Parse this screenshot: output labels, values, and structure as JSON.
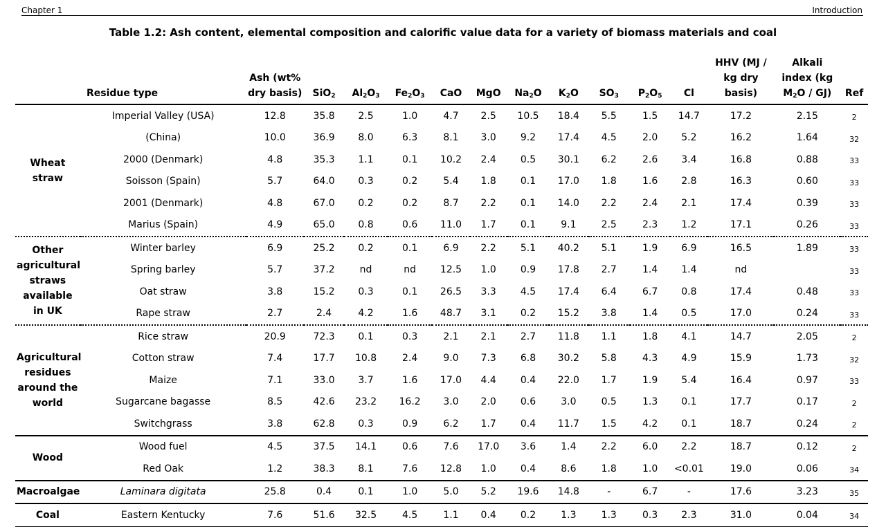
{
  "header": {
    "left": "Chapter 1",
    "right": "Introduction"
  },
  "title": "Table 1.2: Ash content, elemental composition and calorific value data for a variety of biomass materials and coal",
  "columns": {
    "residue": "Residue type",
    "ash": "Ash (wt% dry basis)",
    "sio2_a": "SiO",
    "sio2_b": "2",
    "al2o3_a": "Al",
    "al2o3_b": "2",
    "al2o3_c": "O",
    "al2o3_d": "3",
    "fe2o3_a": "Fe",
    "fe2o3_b": "2",
    "fe2o3_c": "O",
    "fe2o3_d": "3",
    "cao": "CaO",
    "mgo": "MgO",
    "na2o_a": "Na",
    "na2o_b": "2",
    "na2o_c": "O",
    "k2o_a": "K",
    "k2o_b": "2",
    "k2o_c": "O",
    "so3_a": "SO",
    "so3_b": "3",
    "p2o5_a": "P",
    "p2o5_b": "2",
    "p2o5_c": "O",
    "p2o5_d": "5",
    "cl": "Cl",
    "hhv": "HHV (MJ / kg dry basis)",
    "alkali_a": "Alkali index (kg M",
    "alkali_b": "2",
    "alkali_c": "O / GJ)",
    "ref": "Ref"
  },
  "groups": {
    "wheat": "Wheat straw",
    "other": "Other agricultural straws available in UK",
    "agri": "Agricultural residues around the world",
    "wood": "Wood",
    "macro": "Macroalgae",
    "coal": "Coal"
  },
  "rows": [
    {
      "name": "Imperial Valley (USA)",
      "ash": "12.8",
      "sio2": "35.8",
      "al2o3": "2.5",
      "fe2o3": "1.0",
      "cao": "4.7",
      "mgo": "2.5",
      "na2o": "10.5",
      "k2o": "18.4",
      "so3": "5.5",
      "p2o5": "1.5",
      "cl": "14.7",
      "hhv": "17.2",
      "alkali": "2.15",
      "ref": "2"
    },
    {
      "name": "(China)",
      "ash": "10.0",
      "sio2": "36.9",
      "al2o3": "8.0",
      "fe2o3": "6.3",
      "cao": "8.1",
      "mgo": "3.0",
      "na2o": "9.2",
      "k2o": "17.4",
      "so3": "4.5",
      "p2o5": "2.0",
      "cl": "5.2",
      "hhv": "16.2",
      "alkali": "1.64",
      "ref": "32"
    },
    {
      "name": "2000 (Denmark)",
      "ash": "4.8",
      "sio2": "35.3",
      "al2o3": "1.1",
      "fe2o3": "0.1",
      "cao": "10.2",
      "mgo": "2.4",
      "na2o": "0.5",
      "k2o": "30.1",
      "so3": "6.2",
      "p2o5": "2.6",
      "cl": "3.4",
      "hhv": "16.8",
      "alkali": "0.88",
      "ref": "33"
    },
    {
      "name": "Soisson (Spain)",
      "ash": "5.7",
      "sio2": "64.0",
      "al2o3": "0.3",
      "fe2o3": "0.2",
      "cao": "5.4",
      "mgo": "1.8",
      "na2o": "0.1",
      "k2o": "17.0",
      "so3": "1.8",
      "p2o5": "1.6",
      "cl": "2.8",
      "hhv": "16.3",
      "alkali": "0.60",
      "ref": "33"
    },
    {
      "name": "2001 (Denmark)",
      "ash": "4.8",
      "sio2": "67.0",
      "al2o3": "0.2",
      "fe2o3": "0.2",
      "cao": "8.7",
      "mgo": "2.2",
      "na2o": "0.1",
      "k2o": "14.0",
      "so3": "2.2",
      "p2o5": "2.4",
      "cl": "2.1",
      "hhv": "17.4",
      "alkali": "0.39",
      "ref": "33"
    },
    {
      "name": "Marius (Spain)",
      "ash": "4.9",
      "sio2": "65.0",
      "al2o3": "0.8",
      "fe2o3": "0.6",
      "cao": "11.0",
      "mgo": "1.7",
      "na2o": "0.1",
      "k2o": "9.1",
      "so3": "2.5",
      "p2o5": "2.3",
      "cl": "1.2",
      "hhv": "17.1",
      "alkali": "0.26",
      "ref": "33"
    },
    {
      "name": "Winter barley",
      "ash": "6.9",
      "sio2": "25.2",
      "al2o3": "0.2",
      "fe2o3": "0.1",
      "cao": "6.9",
      "mgo": "2.2",
      "na2o": "5.1",
      "k2o": "40.2",
      "so3": "5.1",
      "p2o5": "1.9",
      "cl": "6.9",
      "hhv": "16.5",
      "alkali": "1.89",
      "ref": "33"
    },
    {
      "name": "Spring barley",
      "ash": "5.7",
      "sio2": "37.2",
      "al2o3": "nd",
      "fe2o3": "nd",
      "cao": "12.5",
      "mgo": "1.0",
      "na2o": "0.9",
      "k2o": "17.8",
      "so3": "2.7",
      "p2o5": "1.4",
      "cl": "1.4",
      "hhv": "nd",
      "alkali": "",
      "ref": "33"
    },
    {
      "name": "Oat straw",
      "ash": "3.8",
      "sio2": "15.2",
      "al2o3": "0.3",
      "fe2o3": "0.1",
      "cao": "26.5",
      "mgo": "3.3",
      "na2o": "4.5",
      "k2o": "17.4",
      "so3": "6.4",
      "p2o5": "6.7",
      "cl": "0.8",
      "hhv": "17.4",
      "alkali": "0.48",
      "ref": "33"
    },
    {
      "name": "Rape straw",
      "ash": "2.7",
      "sio2": "2.4",
      "al2o3": "4.2",
      "fe2o3": "1.6",
      "cao": "48.7",
      "mgo": "3.1",
      "na2o": "0.2",
      "k2o": "15.2",
      "so3": "3.8",
      "p2o5": "1.4",
      "cl": "0.5",
      "hhv": "17.0",
      "alkali": "0.24",
      "ref": "33"
    },
    {
      "name": "Rice straw",
      "ash": "20.9",
      "sio2": "72.3",
      "al2o3": "0.1",
      "fe2o3": "0.3",
      "cao": "2.1",
      "mgo": "2.1",
      "na2o": "2.7",
      "k2o": "11.8",
      "so3": "1.1",
      "p2o5": "1.8",
      "cl": "4.1",
      "hhv": "14.7",
      "alkali": "2.05",
      "ref": "2"
    },
    {
      "name": "Cotton straw",
      "ash": "7.4",
      "sio2": "17.7",
      "al2o3": "10.8",
      "fe2o3": "2.4",
      "cao": "9.0",
      "mgo": "7.3",
      "na2o": "6.8",
      "k2o": "30.2",
      "so3": "5.8",
      "p2o5": "4.3",
      "cl": "4.9",
      "hhv": "15.9",
      "alkali": "1.73",
      "ref": "32"
    },
    {
      "name": "Maize",
      "ash": "7.1",
      "sio2": "33.0",
      "al2o3": "3.7",
      "fe2o3": "1.6",
      "cao": "17.0",
      "mgo": "4.4",
      "na2o": "0.4",
      "k2o": "22.0",
      "so3": "1.7",
      "p2o5": "1.9",
      "cl": "5.4",
      "hhv": "16.4",
      "alkali": "0.97",
      "ref": "33"
    },
    {
      "name": "Sugarcane bagasse",
      "ash": "8.5",
      "sio2": "42.6",
      "al2o3": "23.2",
      "fe2o3": "16.2",
      "cao": "3.0",
      "mgo": "2.0",
      "na2o": "0.6",
      "k2o": "3.0",
      "so3": "0.5",
      "p2o5": "1.3",
      "cl": "0.1",
      "hhv": "17.7",
      "alkali": "0.17",
      "ref": "2"
    },
    {
      "name": "Switchgrass",
      "ash": "3.8",
      "sio2": "62.8",
      "al2o3": "0.3",
      "fe2o3": "0.9",
      "cao": "6.2",
      "mgo": "1.7",
      "na2o": "0.4",
      "k2o": "11.7",
      "so3": "1.5",
      "p2o5": "4.2",
      "cl": "0.1",
      "hhv": "18.7",
      "alkali": "0.24",
      "ref": "2"
    },
    {
      "name": "Wood fuel",
      "ash": "4.5",
      "sio2": "37.5",
      "al2o3": "14.1",
      "fe2o3": "0.6",
      "cao": "7.6",
      "mgo": "17.0",
      "na2o": "3.6",
      "k2o": "1.4",
      "so3": "2.2",
      "p2o5": "6.0",
      "cl": "2.2",
      "hhv": "18.7",
      "alkali": "0.12",
      "ref": "2"
    },
    {
      "name": "Red Oak",
      "ash": "1.2",
      "sio2": "38.3",
      "al2o3": "8.1",
      "fe2o3": "7.6",
      "cao": "12.8",
      "mgo": "1.0",
      "na2o": "0.4",
      "k2o": "8.6",
      "so3": "1.8",
      "p2o5": "1.0",
      "cl": "<0.01",
      "hhv": "19.0",
      "alkali": "0.06",
      "ref": "34"
    },
    {
      "name": "Laminara digitata",
      "ash": "25.8",
      "sio2": "0.4",
      "al2o3": "0.1",
      "fe2o3": "1.0",
      "cao": "5.0",
      "mgo": "5.2",
      "na2o": "19.6",
      "k2o": "14.8",
      "so3": "-",
      "p2o5": "6.7",
      "cl": "-",
      "hhv": "17.6",
      "alkali": "3.23",
      "ref": "35"
    },
    {
      "name": "Eastern Kentucky",
      "ash": "7.6",
      "sio2": "51.6",
      "al2o3": "32.5",
      "fe2o3": "4.5",
      "cao": "1.1",
      "mgo": "0.4",
      "na2o": "0.2",
      "k2o": "1.3",
      "so3": "1.3",
      "p2o5": "0.3",
      "cl": "2.3",
      "hhv": "31.0",
      "alkali": "0.04",
      "ref": "34"
    }
  ]
}
